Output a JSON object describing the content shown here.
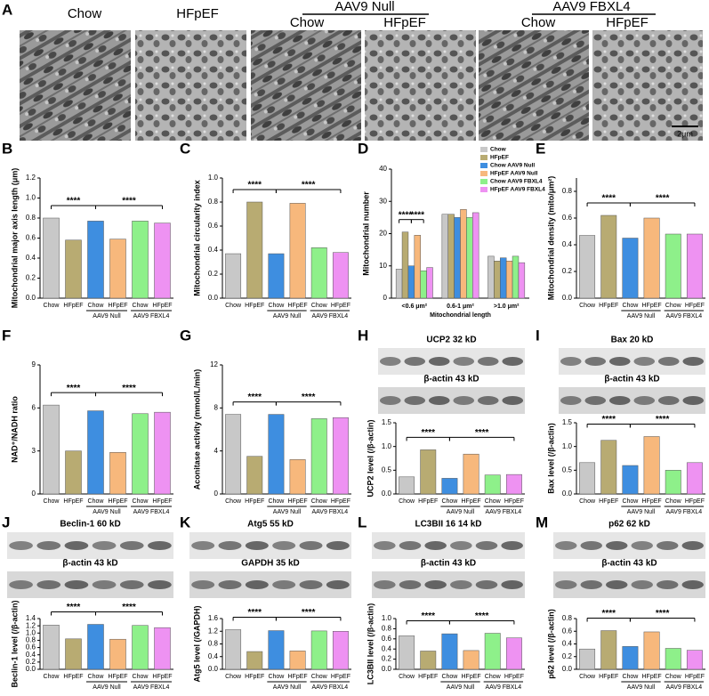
{
  "panel_a": {
    "letter": "A",
    "labels": [
      "Chow",
      "HFpEF",
      "Chow",
      "HFpEF",
      "Chow",
      "HFpEF"
    ],
    "groups": [
      "AAV9 Null",
      "AAV9 FBXL4"
    ],
    "scale_bar": "2μm"
  },
  "chart_data": [
    {
      "type": "bar",
      "panel": "B",
      "ylabel": "Mitochondrial major axis length (μm)",
      "categories": [
        "Chow",
        "HFpEF",
        "Chow",
        "HFpEF",
        "Chow",
        "HFpEF"
      ],
      "group_labels": [
        "AAV9 Null",
        "AAV9 FBXL4"
      ],
      "values": [
        0.8,
        0.58,
        0.77,
        0.59,
        0.77,
        0.75
      ],
      "colors": [
        "#c8c8c8",
        "#b8ab72",
        "#3e8ee0",
        "#f7b87c",
        "#8ef08a",
        "#ee92f2"
      ],
      "ylim": [
        0,
        1.2
      ],
      "yticks": [
        {
          "value": 0,
          "label": "0.0"
        },
        {
          "value": 0.2,
          "label": "0.2"
        },
        {
          "value": 0.4,
          "label": "0.4"
        },
        {
          "value": 0.6,
          "label": "0.6"
        },
        {
          "value": 0.8,
          "label": "0.8"
        },
        {
          "value": 1,
          "label": "1.0"
        },
        {
          "value": 1.2,
          "label": "1.2"
        }
      ],
      "annotations": [
        "****",
        "****"
      ]
    },
    {
      "type": "bar",
      "panel": "C",
      "ylabel": "Mitochondrial circularity index",
      "categories": [
        "Chow",
        "HFpEF",
        "Chow",
        "HFpEF",
        "Chow",
        "HFpEF"
      ],
      "group_labels": [
        "AAV9 Null",
        "AAV9 FBXL4"
      ],
      "values": [
        0.37,
        0.8,
        0.37,
        0.79,
        0.42,
        0.38
      ],
      "colors": [
        "#c8c8c8",
        "#b8ab72",
        "#3e8ee0",
        "#f7b87c",
        "#8ef08a",
        "#ee92f2"
      ],
      "ylim": [
        0,
        1.0
      ],
      "yticks": [
        {
          "value": 0,
          "label": "0.0"
        },
        {
          "value": 0.2,
          "label": "0.2"
        },
        {
          "value": 0.4,
          "label": "0.4"
        },
        {
          "value": 0.6,
          "label": "0.6"
        },
        {
          "value": 0.8,
          "label": "0.8"
        },
        {
          "value": 1,
          "label": "1.0"
        }
      ],
      "annotations": [
        "****",
        "****"
      ]
    },
    {
      "type": "grouped_bar",
      "panel": "D",
      "ylabel": "Mitochondrial number",
      "xlabel": "Mitochondrial  length",
      "categories": [
        "<0.6 μm²",
        "0.6-1 μm²",
        ">1.0 μm²"
      ],
      "series": [
        {
          "name": "Chow",
          "color": "#c8c8c8",
          "values": [
            9,
            26,
            13
          ]
        },
        {
          "name": "HFpEF",
          "color": "#b8ab72",
          "values": [
            20.5,
            26,
            11.5
          ]
        },
        {
          "name": "Chow AAV9 Null",
          "color": "#3e8ee0",
          "values": [
            10,
            25,
            12.5
          ]
        },
        {
          "name": "HFpEF AAV9 Null",
          "color": "#f7b87c",
          "values": [
            19.5,
            27.5,
            11.5
          ]
        },
        {
          "name": "Chow AAV9 FBXL4",
          "color": "#8ef08a",
          "values": [
            8.5,
            25,
            13
          ]
        },
        {
          "name": "HFpEF AAV9 FBXL4",
          "color": "#ee92f2",
          "values": [
            9.5,
            26.5,
            11
          ]
        }
      ],
      "ylim": [
        0,
        40
      ],
      "yticks": [
        0,
        10,
        20,
        30,
        40
      ],
      "annotations": [
        "****",
        "****"
      ]
    },
    {
      "type": "bar",
      "panel": "E",
      "ylabel": "Mitochondrial density (mito/μm²)",
      "categories": [
        "Chow",
        "HFpEF",
        "Chow",
        "HFpEF",
        "Chow",
        "HFpEF"
      ],
      "group_labels": [
        "AAV9 Null",
        "AAV9 FBXL4"
      ],
      "values": [
        0.47,
        0.62,
        0.45,
        0.6,
        0.48,
        0.48
      ],
      "colors": [
        "#c8c8c8",
        "#b8ab72",
        "#3e8ee0",
        "#f7b87c",
        "#8ef08a",
        "#ee92f2"
      ],
      "ylim": [
        0,
        0.9
      ],
      "yticks": [
        {
          "value": 0,
          "label": "0.0"
        },
        {
          "value": 0.2,
          "label": "0.2"
        },
        {
          "value": 0.4,
          "label": "0.4"
        },
        {
          "value": 0.6,
          "label": "0.6"
        },
        {
          "value": 0.8,
          "label": "0.8"
        }
      ],
      "annotations": [
        "****",
        "****"
      ]
    },
    {
      "type": "bar",
      "panel": "F",
      "ylabel": "NAD⁺/NADH ratio",
      "categories": [
        "Chow",
        "HFpEF",
        "Chow",
        "HFpEF",
        "Chow",
        "HFpEF"
      ],
      "group_labels": [
        "AAV9 Null",
        "AAV9 FBXL4"
      ],
      "values": [
        6.2,
        3.0,
        5.8,
        2.9,
        5.6,
        5.7
      ],
      "colors": [
        "#c8c8c8",
        "#b8ab72",
        "#3e8ee0",
        "#f7b87c",
        "#8ef08a",
        "#ee92f2"
      ],
      "ylim": [
        0,
        9
      ],
      "yticks": [
        0,
        3,
        6,
        9
      ],
      "annotations": [
        "****",
        "****"
      ]
    },
    {
      "type": "bar",
      "panel": "G",
      "ylabel": "Aconitase activity (mmol/L/min)",
      "categories": [
        "Chow",
        "HFpEF",
        "Chow",
        "HFpEF",
        "Chow",
        "HFpEF"
      ],
      "group_labels": [
        "AAV9 Null",
        "AAV9 FBXL4"
      ],
      "values": [
        7.4,
        3.5,
        7.4,
        3.2,
        7.0,
        7.1
      ],
      "colors": [
        "#c8c8c8",
        "#b8ab72",
        "#3e8ee0",
        "#f7b87c",
        "#8ef08a",
        "#ee92f2"
      ],
      "ylim": [
        0,
        12
      ],
      "yticks": [
        0,
        4,
        8,
        12
      ],
      "annotations": [
        "****",
        "****"
      ]
    },
    {
      "type": "bar",
      "panel": "H",
      "blots": [
        "UCP2  32 kD",
        "β-actin 43 kD"
      ],
      "ylabel": "UCP2 level (/β-actin)",
      "categories": [
        "Chow",
        "HFpEF",
        "Chow",
        "HFpEF",
        "Chow",
        "HFpEF"
      ],
      "group_labels": [
        "AAV9 Null",
        "AAV9 FBXL4"
      ],
      "values": [
        0.36,
        0.93,
        0.33,
        0.84,
        0.4,
        0.41
      ],
      "colors": [
        "#c8c8c8",
        "#b8ab72",
        "#3e8ee0",
        "#f7b87c",
        "#8ef08a",
        "#ee92f2"
      ],
      "ylim": [
        0,
        1.5
      ],
      "yticks": [
        {
          "value": 0,
          "label": "0.0"
        },
        {
          "value": 0.5,
          "label": "0.5"
        },
        {
          "value": 1,
          "label": "1.0"
        },
        {
          "value": 1.5,
          "label": "1.5"
        }
      ],
      "annotations": [
        "****",
        "****"
      ]
    },
    {
      "type": "bar",
      "panel": "I",
      "blots": [
        "Bax  20 kD",
        "β-actin 43 kD"
      ],
      "ylabel": "Bax  level (/β-actin)",
      "categories": [
        "Chow",
        "HFpEF",
        "Chow",
        "HFpEF",
        "Chow",
        "HFpEF"
      ],
      "group_labels": [
        "AAV9 Null",
        "AAV9 FBXL4"
      ],
      "values": [
        0.66,
        1.13,
        0.6,
        1.21,
        0.5,
        0.66
      ],
      "colors": [
        "#c8c8c8",
        "#b8ab72",
        "#3e8ee0",
        "#f7b87c",
        "#8ef08a",
        "#ee92f2"
      ],
      "ylim": [
        0,
        1.5
      ],
      "yticks": [
        {
          "value": 0,
          "label": "0.0"
        },
        {
          "value": 0.5,
          "label": "0.5"
        },
        {
          "value": 1,
          "label": "1.0"
        },
        {
          "value": 1.5,
          "label": "1.5"
        }
      ],
      "annotations": [
        "****",
        "****"
      ]
    },
    {
      "type": "bar",
      "panel": "J",
      "blots": [
        "Beclin-1 60 kD",
        "β-actin 43 kD"
      ],
      "ylabel": "Beclin-1 level (/β-actin)",
      "categories": [
        "Chow",
        "HFpEF",
        "Chow",
        "HFpEF",
        "Chow",
        "HFpEF"
      ],
      "group_labels": [
        "AAV9 Null",
        "AAV9 FBXL4"
      ],
      "values": [
        1.22,
        0.84,
        1.24,
        0.83,
        1.21,
        1.15
      ],
      "colors": [
        "#c8c8c8",
        "#b8ab72",
        "#3e8ee0",
        "#f7b87c",
        "#8ef08a",
        "#ee92f2"
      ],
      "ylim": [
        0,
        1.4
      ],
      "yticks": [
        {
          "value": 0,
          "label": "0.0"
        },
        {
          "value": 0.2,
          "label": "0.2"
        },
        {
          "value": 0.4,
          "label": "0.4"
        },
        {
          "value": 0.6,
          "label": "0.6"
        },
        {
          "value": 0.8,
          "label": "0.8"
        },
        {
          "value": 1,
          "label": "1.0"
        },
        {
          "value": 1.2,
          "label": "1.2"
        },
        {
          "value": 1.4,
          "label": "1.4"
        }
      ],
      "annotations": [
        "****",
        "****"
      ]
    },
    {
      "type": "bar",
      "panel": "K",
      "blots": [
        "Atg5  55 kD",
        "GAPDH 35 kD"
      ],
      "ylabel": "Atg5 level (/GAPDH)",
      "categories": [
        "Chow",
        "HFpEF",
        "Chow",
        "HFpEF",
        "Chow",
        "HFpEF"
      ],
      "group_labels": [
        "AAV9 Null",
        "AAV9 FBXL4"
      ],
      "values": [
        1.25,
        0.56,
        1.22,
        0.58,
        1.21,
        1.2
      ],
      "colors": [
        "#c8c8c8",
        "#b8ab72",
        "#3e8ee0",
        "#f7b87c",
        "#8ef08a",
        "#ee92f2"
      ],
      "ylim": [
        0,
        1.6
      ],
      "yticks": [
        {
          "value": 0,
          "label": "0.0"
        },
        {
          "value": 0.4,
          "label": "0.4"
        },
        {
          "value": 0.8,
          "label": "0.8"
        },
        {
          "value": 1.2,
          "label": "1.2"
        },
        {
          "value": 1.6,
          "label": "1.6"
        }
      ],
      "annotations": [
        "****",
        "****"
      ]
    },
    {
      "type": "bar",
      "panel": "L",
      "blots": [
        "LC3BII 16 14 kD",
        "β-actin 43 kD"
      ],
      "ylabel": "LC3BII level (/β-actin)",
      "categories": [
        "Chow",
        "HFpEF",
        "Chow",
        "HFpEF",
        "Chow",
        "HFpEF"
      ],
      "group_labels": [
        "AAV9 Null",
        "AAV9 FBXL4"
      ],
      "values": [
        0.66,
        0.36,
        0.7,
        0.37,
        0.71,
        0.62
      ],
      "colors": [
        "#c8c8c8",
        "#b8ab72",
        "#3e8ee0",
        "#f7b87c",
        "#8ef08a",
        "#ee92f2"
      ],
      "ylim": [
        0,
        1.0
      ],
      "yticks": [
        {
          "value": 0,
          "label": "0.0"
        },
        {
          "value": 0.2,
          "label": "0.2"
        },
        {
          "value": 0.4,
          "label": "0.4"
        },
        {
          "value": 0.6,
          "label": "0.6"
        },
        {
          "value": 0.8,
          "label": "0.8"
        },
        {
          "value": 1,
          "label": "1.0"
        }
      ],
      "annotations": [
        "****",
        "****"
      ]
    },
    {
      "type": "bar",
      "panel": "M",
      "blots": [
        "p62 62 kD",
        "β-actin 43 kD"
      ],
      "ylabel": "p62 level (/β-actin)",
      "categories": [
        "Chow",
        "HFpEF",
        "Chow",
        "HFpEF",
        "Chow",
        "HFpEF"
      ],
      "group_labels": [
        "AAV9 Null",
        "AAV9 FBXL4"
      ],
      "values": [
        0.32,
        0.61,
        0.36,
        0.59,
        0.33,
        0.3
      ],
      "colors": [
        "#c8c8c8",
        "#b8ab72",
        "#3e8ee0",
        "#f7b87c",
        "#8ef08a",
        "#ee92f2"
      ],
      "ylim": [
        0,
        0.8
      ],
      "yticks": [
        {
          "value": 0,
          "label": "0.0"
        },
        {
          "value": 0.2,
          "label": "0.2"
        },
        {
          "value": 0.4,
          "label": "0.4"
        },
        {
          "value": 0.6,
          "label": "0.6"
        },
        {
          "value": 0.8,
          "label": "0.8"
        }
      ],
      "annotations": [
        "****",
        "****"
      ]
    }
  ]
}
